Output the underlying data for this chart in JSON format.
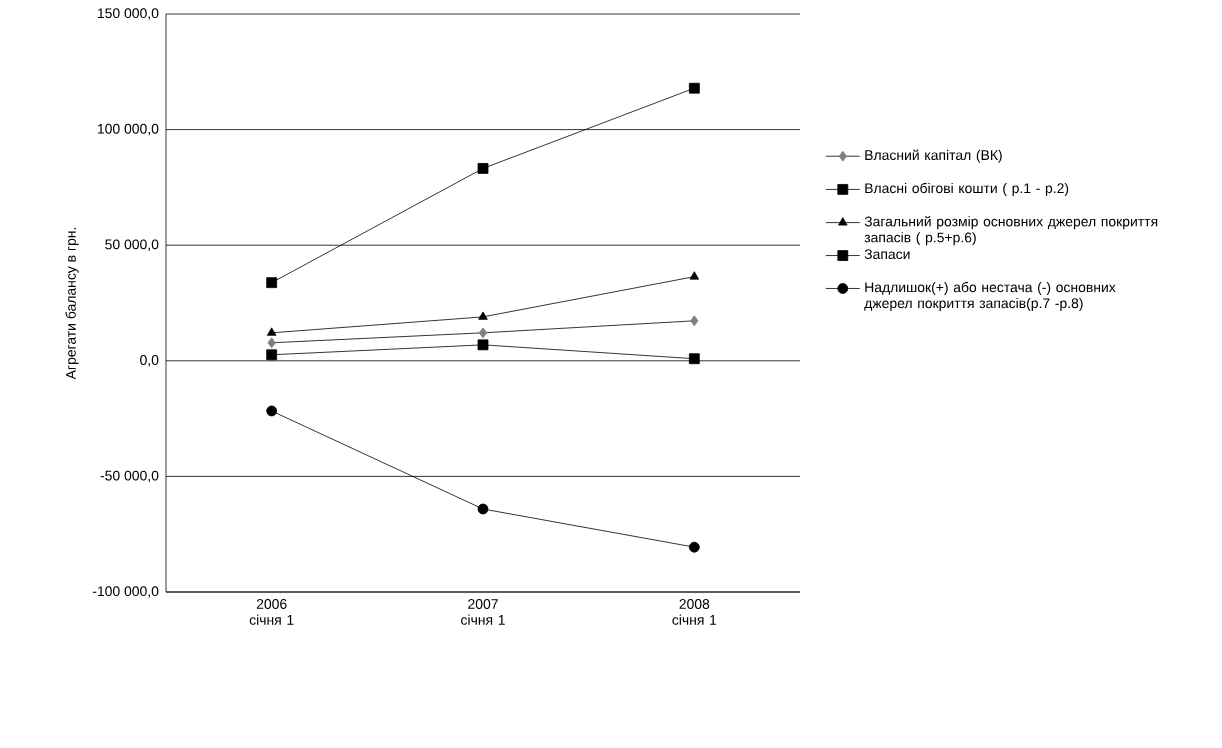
{
  "chart_data": {
    "type": "line",
    "ylabel": "Агрегати балансу в грн.",
    "categories": [
      "2006 січня 1",
      "2007 січня 1",
      "2008 січня 1"
    ],
    "series": [
      {
        "name": "Власний капітал (ВК)",
        "color": "#808080",
        "marker": "diamond",
        "values": [
          7800,
          12100,
          17300
        ]
      },
      {
        "name": "Власні обігові кошти ( р.1 - р.2)",
        "color": "#000000",
        "marker": "square",
        "values": [
          2600,
          6900,
          900
        ]
      },
      {
        "name": "Загальний розмір основних джерел покриття запасів ( р.5+р.6)",
        "color": "#000000",
        "marker": "triangle",
        "values": [
          12100,
          19000,
          36400
        ]
      },
      {
        "name": "Запаси",
        "color": "#000000",
        "marker": "square",
        "values": [
          33800,
          83200,
          117900
        ]
      },
      {
        "name": "Надлишок(+) або нестача (-) основних джерел покриття запасів(р.7 -р.8)",
        "color": "#000000",
        "marker": "circle",
        "values": [
          -21700,
          -64100,
          -80600
        ]
      }
    ],
    "ylim": [
      -100000,
      150000
    ],
    "yticks": [
      {
        "value": -100000,
        "label": "-100 000,0"
      },
      {
        "value": -50000,
        "label": "-50 000,0"
      },
      {
        "value": 0,
        "label": "0,0"
      },
      {
        "value": 50000,
        "label": "50 000,0"
      },
      {
        "value": 100000,
        "label": "100 000,0"
      },
      {
        "value": 150000,
        "label": "150 000,0"
      }
    ],
    "grid": "y",
    "legend": "right",
    "line_style": "solid"
  }
}
